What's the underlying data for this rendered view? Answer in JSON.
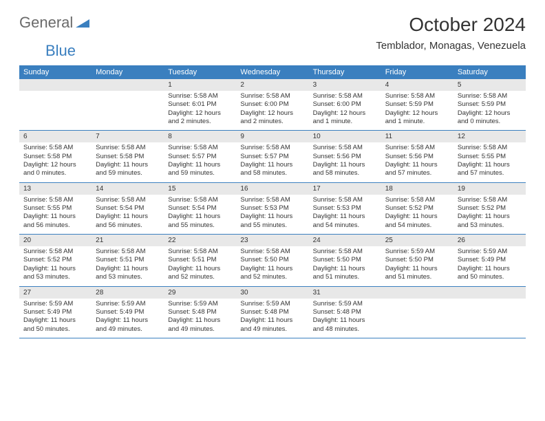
{
  "brand": {
    "part1": "General",
    "part2": "Blue",
    "triangle_color": "#3a7fbf"
  },
  "title": "October 2024",
  "location": "Temblador, Monagas, Venezuela",
  "day_headers": [
    "Sunday",
    "Monday",
    "Tuesday",
    "Wednesday",
    "Thursday",
    "Friday",
    "Saturday"
  ],
  "colors": {
    "header_bg": "#3a7fbf",
    "header_text": "#ffffff",
    "daynum_bg": "#e8e8e8",
    "rule": "#3a7fbf",
    "text": "#333333",
    "background": "#ffffff"
  },
  "fonts": {
    "title_size_pt": 21,
    "location_size_pt": 11,
    "header_size_pt": 8,
    "cell_size_pt": 7
  },
  "weeks": [
    [
      null,
      null,
      {
        "n": "1",
        "sunrise": "Sunrise: 5:58 AM",
        "sunset": "Sunset: 6:01 PM",
        "daylight": "Daylight: 12 hours and 2 minutes."
      },
      {
        "n": "2",
        "sunrise": "Sunrise: 5:58 AM",
        "sunset": "Sunset: 6:00 PM",
        "daylight": "Daylight: 12 hours and 2 minutes."
      },
      {
        "n": "3",
        "sunrise": "Sunrise: 5:58 AM",
        "sunset": "Sunset: 6:00 PM",
        "daylight": "Daylight: 12 hours and 1 minute."
      },
      {
        "n": "4",
        "sunrise": "Sunrise: 5:58 AM",
        "sunset": "Sunset: 5:59 PM",
        "daylight": "Daylight: 12 hours and 1 minute."
      },
      {
        "n": "5",
        "sunrise": "Sunrise: 5:58 AM",
        "sunset": "Sunset: 5:59 PM",
        "daylight": "Daylight: 12 hours and 0 minutes."
      }
    ],
    [
      {
        "n": "6",
        "sunrise": "Sunrise: 5:58 AM",
        "sunset": "Sunset: 5:58 PM",
        "daylight": "Daylight: 12 hours and 0 minutes."
      },
      {
        "n": "7",
        "sunrise": "Sunrise: 5:58 AM",
        "sunset": "Sunset: 5:58 PM",
        "daylight": "Daylight: 11 hours and 59 minutes."
      },
      {
        "n": "8",
        "sunrise": "Sunrise: 5:58 AM",
        "sunset": "Sunset: 5:57 PM",
        "daylight": "Daylight: 11 hours and 59 minutes."
      },
      {
        "n": "9",
        "sunrise": "Sunrise: 5:58 AM",
        "sunset": "Sunset: 5:57 PM",
        "daylight": "Daylight: 11 hours and 58 minutes."
      },
      {
        "n": "10",
        "sunrise": "Sunrise: 5:58 AM",
        "sunset": "Sunset: 5:56 PM",
        "daylight": "Daylight: 11 hours and 58 minutes."
      },
      {
        "n": "11",
        "sunrise": "Sunrise: 5:58 AM",
        "sunset": "Sunset: 5:56 PM",
        "daylight": "Daylight: 11 hours and 57 minutes."
      },
      {
        "n": "12",
        "sunrise": "Sunrise: 5:58 AM",
        "sunset": "Sunset: 5:55 PM",
        "daylight": "Daylight: 11 hours and 57 minutes."
      }
    ],
    [
      {
        "n": "13",
        "sunrise": "Sunrise: 5:58 AM",
        "sunset": "Sunset: 5:55 PM",
        "daylight": "Daylight: 11 hours and 56 minutes."
      },
      {
        "n": "14",
        "sunrise": "Sunrise: 5:58 AM",
        "sunset": "Sunset: 5:54 PM",
        "daylight": "Daylight: 11 hours and 56 minutes."
      },
      {
        "n": "15",
        "sunrise": "Sunrise: 5:58 AM",
        "sunset": "Sunset: 5:54 PM",
        "daylight": "Daylight: 11 hours and 55 minutes."
      },
      {
        "n": "16",
        "sunrise": "Sunrise: 5:58 AM",
        "sunset": "Sunset: 5:53 PM",
        "daylight": "Daylight: 11 hours and 55 minutes."
      },
      {
        "n": "17",
        "sunrise": "Sunrise: 5:58 AM",
        "sunset": "Sunset: 5:53 PM",
        "daylight": "Daylight: 11 hours and 54 minutes."
      },
      {
        "n": "18",
        "sunrise": "Sunrise: 5:58 AM",
        "sunset": "Sunset: 5:52 PM",
        "daylight": "Daylight: 11 hours and 54 minutes."
      },
      {
        "n": "19",
        "sunrise": "Sunrise: 5:58 AM",
        "sunset": "Sunset: 5:52 PM",
        "daylight": "Daylight: 11 hours and 53 minutes."
      }
    ],
    [
      {
        "n": "20",
        "sunrise": "Sunrise: 5:58 AM",
        "sunset": "Sunset: 5:52 PM",
        "daylight": "Daylight: 11 hours and 53 minutes."
      },
      {
        "n": "21",
        "sunrise": "Sunrise: 5:58 AM",
        "sunset": "Sunset: 5:51 PM",
        "daylight": "Daylight: 11 hours and 53 minutes."
      },
      {
        "n": "22",
        "sunrise": "Sunrise: 5:58 AM",
        "sunset": "Sunset: 5:51 PM",
        "daylight": "Daylight: 11 hours and 52 minutes."
      },
      {
        "n": "23",
        "sunrise": "Sunrise: 5:58 AM",
        "sunset": "Sunset: 5:50 PM",
        "daylight": "Daylight: 11 hours and 52 minutes."
      },
      {
        "n": "24",
        "sunrise": "Sunrise: 5:58 AM",
        "sunset": "Sunset: 5:50 PM",
        "daylight": "Daylight: 11 hours and 51 minutes."
      },
      {
        "n": "25",
        "sunrise": "Sunrise: 5:59 AM",
        "sunset": "Sunset: 5:50 PM",
        "daylight": "Daylight: 11 hours and 51 minutes."
      },
      {
        "n": "26",
        "sunrise": "Sunrise: 5:59 AM",
        "sunset": "Sunset: 5:49 PM",
        "daylight": "Daylight: 11 hours and 50 minutes."
      }
    ],
    [
      {
        "n": "27",
        "sunrise": "Sunrise: 5:59 AM",
        "sunset": "Sunset: 5:49 PM",
        "daylight": "Daylight: 11 hours and 50 minutes."
      },
      {
        "n": "28",
        "sunrise": "Sunrise: 5:59 AM",
        "sunset": "Sunset: 5:49 PM",
        "daylight": "Daylight: 11 hours and 49 minutes."
      },
      {
        "n": "29",
        "sunrise": "Sunrise: 5:59 AM",
        "sunset": "Sunset: 5:48 PM",
        "daylight": "Daylight: 11 hours and 49 minutes."
      },
      {
        "n": "30",
        "sunrise": "Sunrise: 5:59 AM",
        "sunset": "Sunset: 5:48 PM",
        "daylight": "Daylight: 11 hours and 49 minutes."
      },
      {
        "n": "31",
        "sunrise": "Sunrise: 5:59 AM",
        "sunset": "Sunset: 5:48 PM",
        "daylight": "Daylight: 11 hours and 48 minutes."
      },
      null,
      null
    ]
  ]
}
